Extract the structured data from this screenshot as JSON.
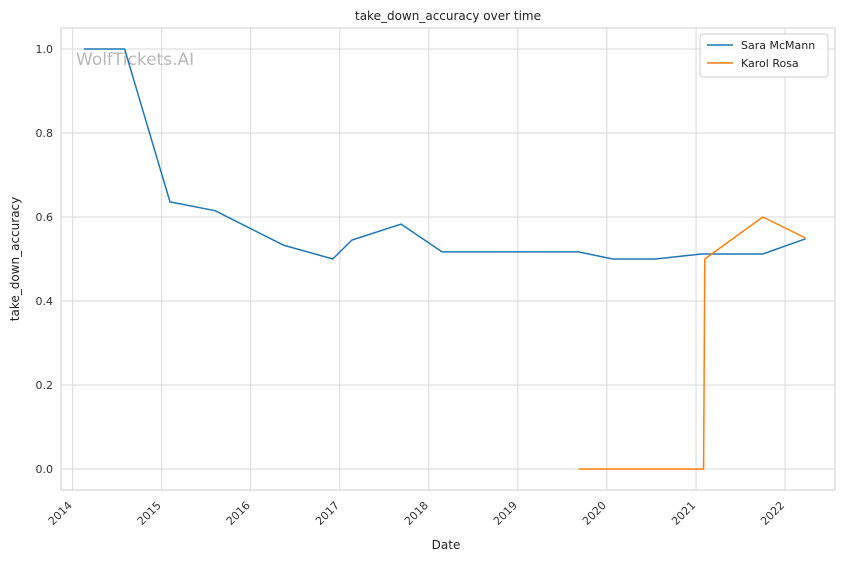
{
  "chart_data": {
    "type": "line",
    "title": "take_down_accuracy over time",
    "xlabel": "Date",
    "ylabel": "take_down_accuracy",
    "watermark": "WolfTickets.AI",
    "x_ticks": [
      "2014",
      "2015",
      "2016",
      "2017",
      "2018",
      "2019",
      "2020",
      "2021",
      "2022"
    ],
    "y_ticks": [
      "0.0",
      "0.2",
      "0.4",
      "0.6",
      "0.8",
      "1.0"
    ],
    "xlim": [
      "2013-11-14",
      "2022-07-25"
    ],
    "ylim": [
      -0.05,
      1.05
    ],
    "grid": true,
    "legend_position": "top-right",
    "series": [
      {
        "name": "Sara McMann",
        "color": "#1f77b4",
        "x": [
          "2014-02-15",
          "2014-08-02",
          "2015-02-04",
          "2015-08-08",
          "2016-05-14",
          "2016-12-03",
          "2017-02-19",
          "2017-09-09",
          "2018-02-24",
          "2019-09-07",
          "2020-01-25",
          "2020-07-18",
          "2021-01-23",
          "2021-10-02",
          "2022-03-26"
        ],
        "y": [
          1.0,
          1.0,
          0.636,
          0.615,
          0.533,
          0.5,
          0.545,
          0.583,
          0.517,
          0.517,
          0.5,
          0.5,
          0.512,
          0.512,
          0.548
        ]
      },
      {
        "name": "Karol Rosa",
        "color": "#ff7f0e",
        "x": [
          "2019-09-07",
          "2021-02-01",
          "2021-02-06",
          "2021-10-02",
          "2022-03-26"
        ],
        "y": [
          0.0,
          0.0,
          0.5,
          0.6,
          0.55
        ]
      }
    ]
  }
}
